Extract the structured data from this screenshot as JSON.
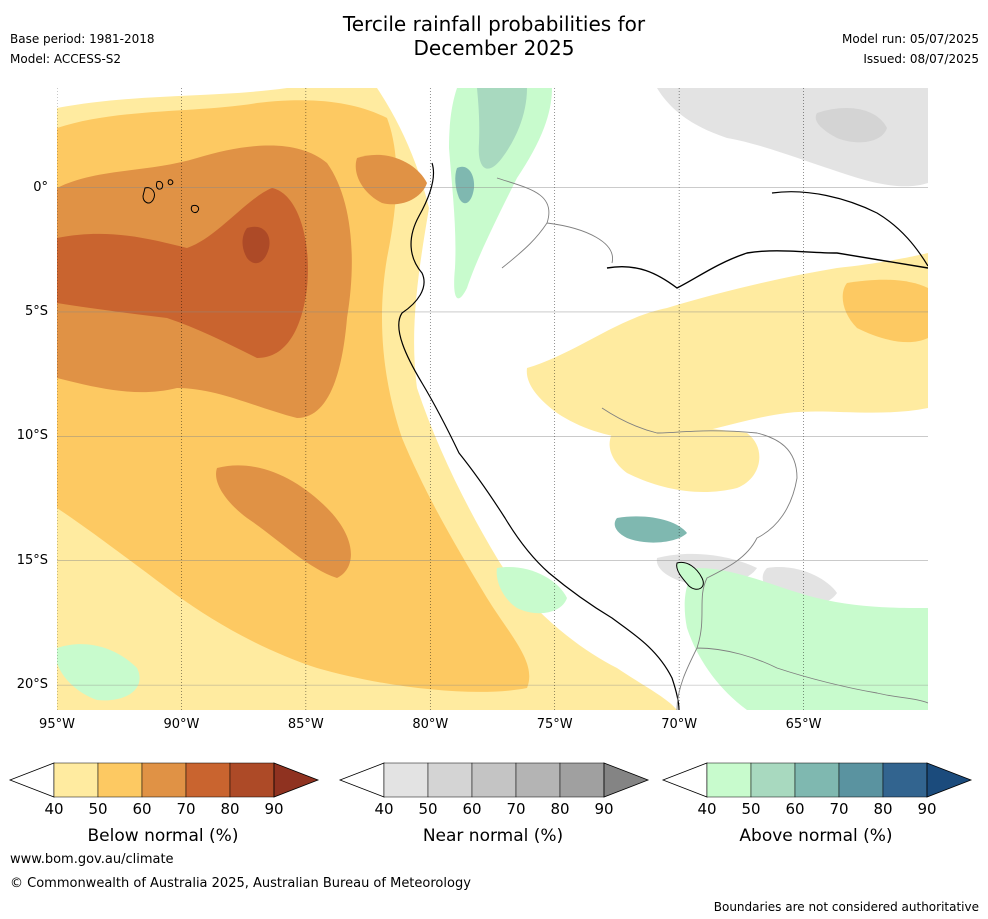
{
  "header": {
    "title_line1": "Tercile rainfall probabilities for",
    "title_line2": "December 2025",
    "base_period": "Base period: 1981-2018",
    "model": "Model: ACCESS-S2",
    "model_run": "Model run: 05/07/2025",
    "issued": "Issued: 08/07/2025"
  },
  "map": {
    "lat_labels": [
      "0°",
      "5°S",
      "10°S",
      "15°S",
      "20°S"
    ],
    "lon_labels": [
      "95°W",
      "90°W",
      "85°W",
      "80°W",
      "75°W",
      "70°W",
      "65°W"
    ],
    "lat_range": [
      4,
      -21
    ],
    "lon_range": [
      -95,
      -60
    ],
    "lat_ticks": [
      0,
      -5,
      -10,
      -15,
      -20
    ],
    "lon_ticks": [
      -95,
      -90,
      -85,
      -80,
      -75,
      -70,
      -65
    ]
  },
  "colorbars": {
    "tick_labels": [
      "40",
      "50",
      "60",
      "70",
      "80",
      "90"
    ],
    "below": {
      "title": "Below normal (%)",
      "colors": [
        "#ffeba0",
        "#fdc962",
        "#e09245",
        "#c9642f",
        "#ad4a27"
      ],
      "extend_color": "#8f3220"
    },
    "near": {
      "title": "Near normal (%)",
      "colors": [
        "#e3e3e3",
        "#d4d4d4",
        "#c4c4c4",
        "#b4b4b4",
        "#a0a0a0"
      ],
      "extend_color": "#848484"
    },
    "above": {
      "title": "Above normal (%)",
      "colors": [
        "#c8fbcd",
        "#a8d9bf",
        "#7fb8b0",
        "#5a93a0",
        "#32648f"
      ],
      "extend_color": "#1b4b7c"
    }
  },
  "footer": {
    "website": "www.bom.gov.au/climate",
    "copyright": "© Commonwealth of Australia 2025, Australian Bureau of Meteorology",
    "disclaimer": "Boundaries are not considered authoritative"
  }
}
